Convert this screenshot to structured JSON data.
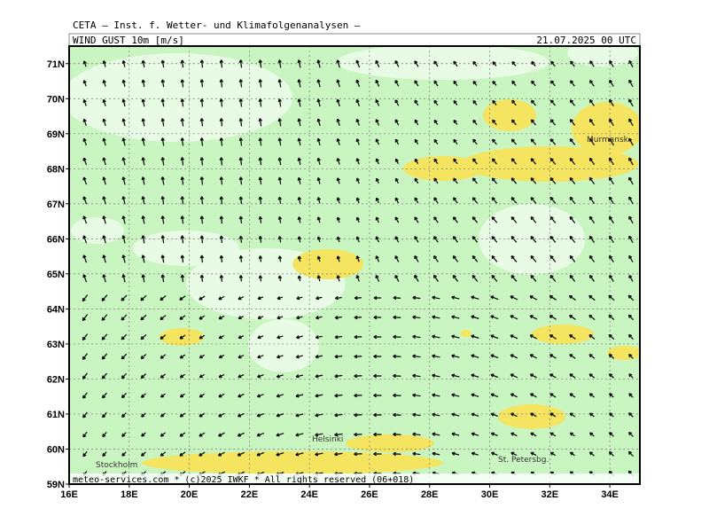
{
  "header": {
    "source": "CETA — Inst. f. Wetter- und Klimafolgenanalysen —",
    "field": "WIND GUST 10m [m/s]",
    "valid": "21.07.2025 00 UTC"
  },
  "map": {
    "xlim": [
      16,
      35
    ],
    "ylim": [
      59,
      71.5
    ],
    "xticks": [
      {
        "value": 16,
        "label": "16E"
      },
      {
        "value": 18,
        "label": "18E"
      },
      {
        "value": 20,
        "label": "20E"
      },
      {
        "value": 22,
        "label": "22E"
      },
      {
        "value": 24,
        "label": "24E"
      },
      {
        "value": 26,
        "label": "26E"
      },
      {
        "value": 28,
        "label": "28E"
      },
      {
        "value": 30,
        "label": "30E"
      },
      {
        "value": 32,
        "label": "32E"
      },
      {
        "value": 34,
        "label": "34E"
      }
    ],
    "yticks": [
      {
        "value": 59,
        "label": "59N"
      },
      {
        "value": 60,
        "label": "60N"
      },
      {
        "value": 61,
        "label": "61N"
      },
      {
        "value": 62,
        "label": "62N"
      },
      {
        "value": 63,
        "label": "63N"
      },
      {
        "value": 64,
        "label": "64N"
      },
      {
        "value": 65,
        "label": "65N"
      },
      {
        "value": 66,
        "label": "66N"
      },
      {
        "value": 67,
        "label": "67N"
      },
      {
        "value": 68,
        "label": "68N"
      },
      {
        "value": 69,
        "label": "69N"
      },
      {
        "value": 70,
        "label": "70N"
      },
      {
        "value": 71,
        "label": "71N"
      }
    ],
    "places": [
      "Murmansk",
      "Helsinki",
      "Stockholm",
      "St. Petersbg."
    ]
  },
  "footer": "meteo-services.com * (c)2025 IWKF * All rights reserved (06+018)"
}
